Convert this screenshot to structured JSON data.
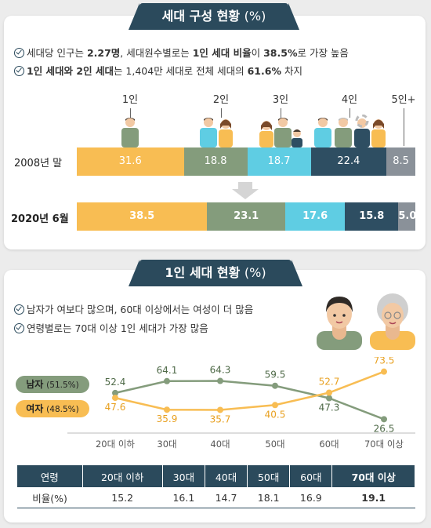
{
  "section1": {
    "title": "세대 구성 현황",
    "title_unit": "(%)",
    "bullets": [
      {
        "parts": [
          {
            "t": "세대당 인구는 ",
            "b": false
          },
          {
            "t": "2.27명",
            "b": true
          },
          {
            "t": ", 세대원수별로는 ",
            "b": false
          },
          {
            "t": "1인 세대 비율",
            "b": true
          },
          {
            "t": "이 ",
            "b": false
          },
          {
            "t": "38.5%",
            "b": true
          },
          {
            "t": "로 가장 높음",
            "b": false
          }
        ]
      },
      {
        "parts": [
          {
            "t": "1인 세대와 2인 세대",
            "b": true
          },
          {
            "t": "는 1,404만 세대로 전체 세대의 ",
            "b": false
          },
          {
            "t": "61.6%",
            "b": true
          },
          {
            "t": " 차지",
            "b": false
          }
        ]
      }
    ],
    "headers": [
      "1인",
      "2인",
      "3인",
      "4인",
      "5인+"
    ]
  },
  "section2": {
    "title": "1인 세대 현황",
    "title_unit": "(%)",
    "bullets": [
      "남자가 여보다 많으며, 60대 이상에서는 여성이 더 많음",
      "연령별로는 70대 이상 1인 세대가 가장 많음"
    ],
    "male_label": "남자",
    "male_pct": "(51.5%)",
    "female_label": "여자",
    "female_pct": "(48.5%)",
    "table": {
      "header": [
        "연령",
        "20대 이하",
        "30대",
        "40대",
        "50대",
        "60대",
        "70대 이상"
      ],
      "row": [
        "비율(%)",
        "15.2",
        "16.1",
        "14.7",
        "18.1",
        "16.9",
        "19.1"
      ]
    }
  },
  "colors": {
    "p1": "#f8bd53",
    "p2": "#849c7c",
    "p3": "#5fcde3",
    "p4": "#2e4e62",
    "p5": "#8a9199",
    "male": "#849c7c",
    "female": "#f8bd53",
    "dark": "#2b4a5c"
  },
  "chart_data": [
    {
      "type": "bar",
      "orientation": "horizontal-stacked",
      "categories": [
        "2008년 말",
        "2020년 6월"
      ],
      "series": [
        {
          "name": "1인",
          "values": [
            31.6,
            38.5
          ]
        },
        {
          "name": "2인",
          "values": [
            18.8,
            23.1
          ]
        },
        {
          "name": "3인",
          "values": [
            18.7,
            17.6
          ]
        },
        {
          "name": "4인",
          "values": [
            22.4,
            15.8
          ]
        },
        {
          "name": "5인+",
          "values": [
            8.5,
            5.0
          ]
        }
      ],
      "value_labels": [
        [
          "31.6",
          "18.8",
          "18.7",
          "22.4",
          "8.5"
        ],
        [
          "38.5",
          "23.1",
          "17.6",
          "15.8",
          "5.0"
        ]
      ]
    },
    {
      "type": "line",
      "x": [
        "20대 이하",
        "30대",
        "40대",
        "50대",
        "60대",
        "70대 이상"
      ],
      "series": [
        {
          "name": "남자",
          "values": [
            52.4,
            64.1,
            64.3,
            59.5,
            47.3,
            26.5
          ],
          "labels": [
            "52.4",
            "64.1",
            "64.3",
            "59.5",
            "47.3",
            "26.5"
          ]
        },
        {
          "name": "여자",
          "values": [
            47.6,
            35.9,
            35.7,
            40.5,
            52.7,
            73.5
          ],
          "labels": [
            "47.6",
            "35.9",
            "35.7",
            "40.5",
            "52.7",
            "73.5"
          ]
        }
      ]
    }
  ]
}
